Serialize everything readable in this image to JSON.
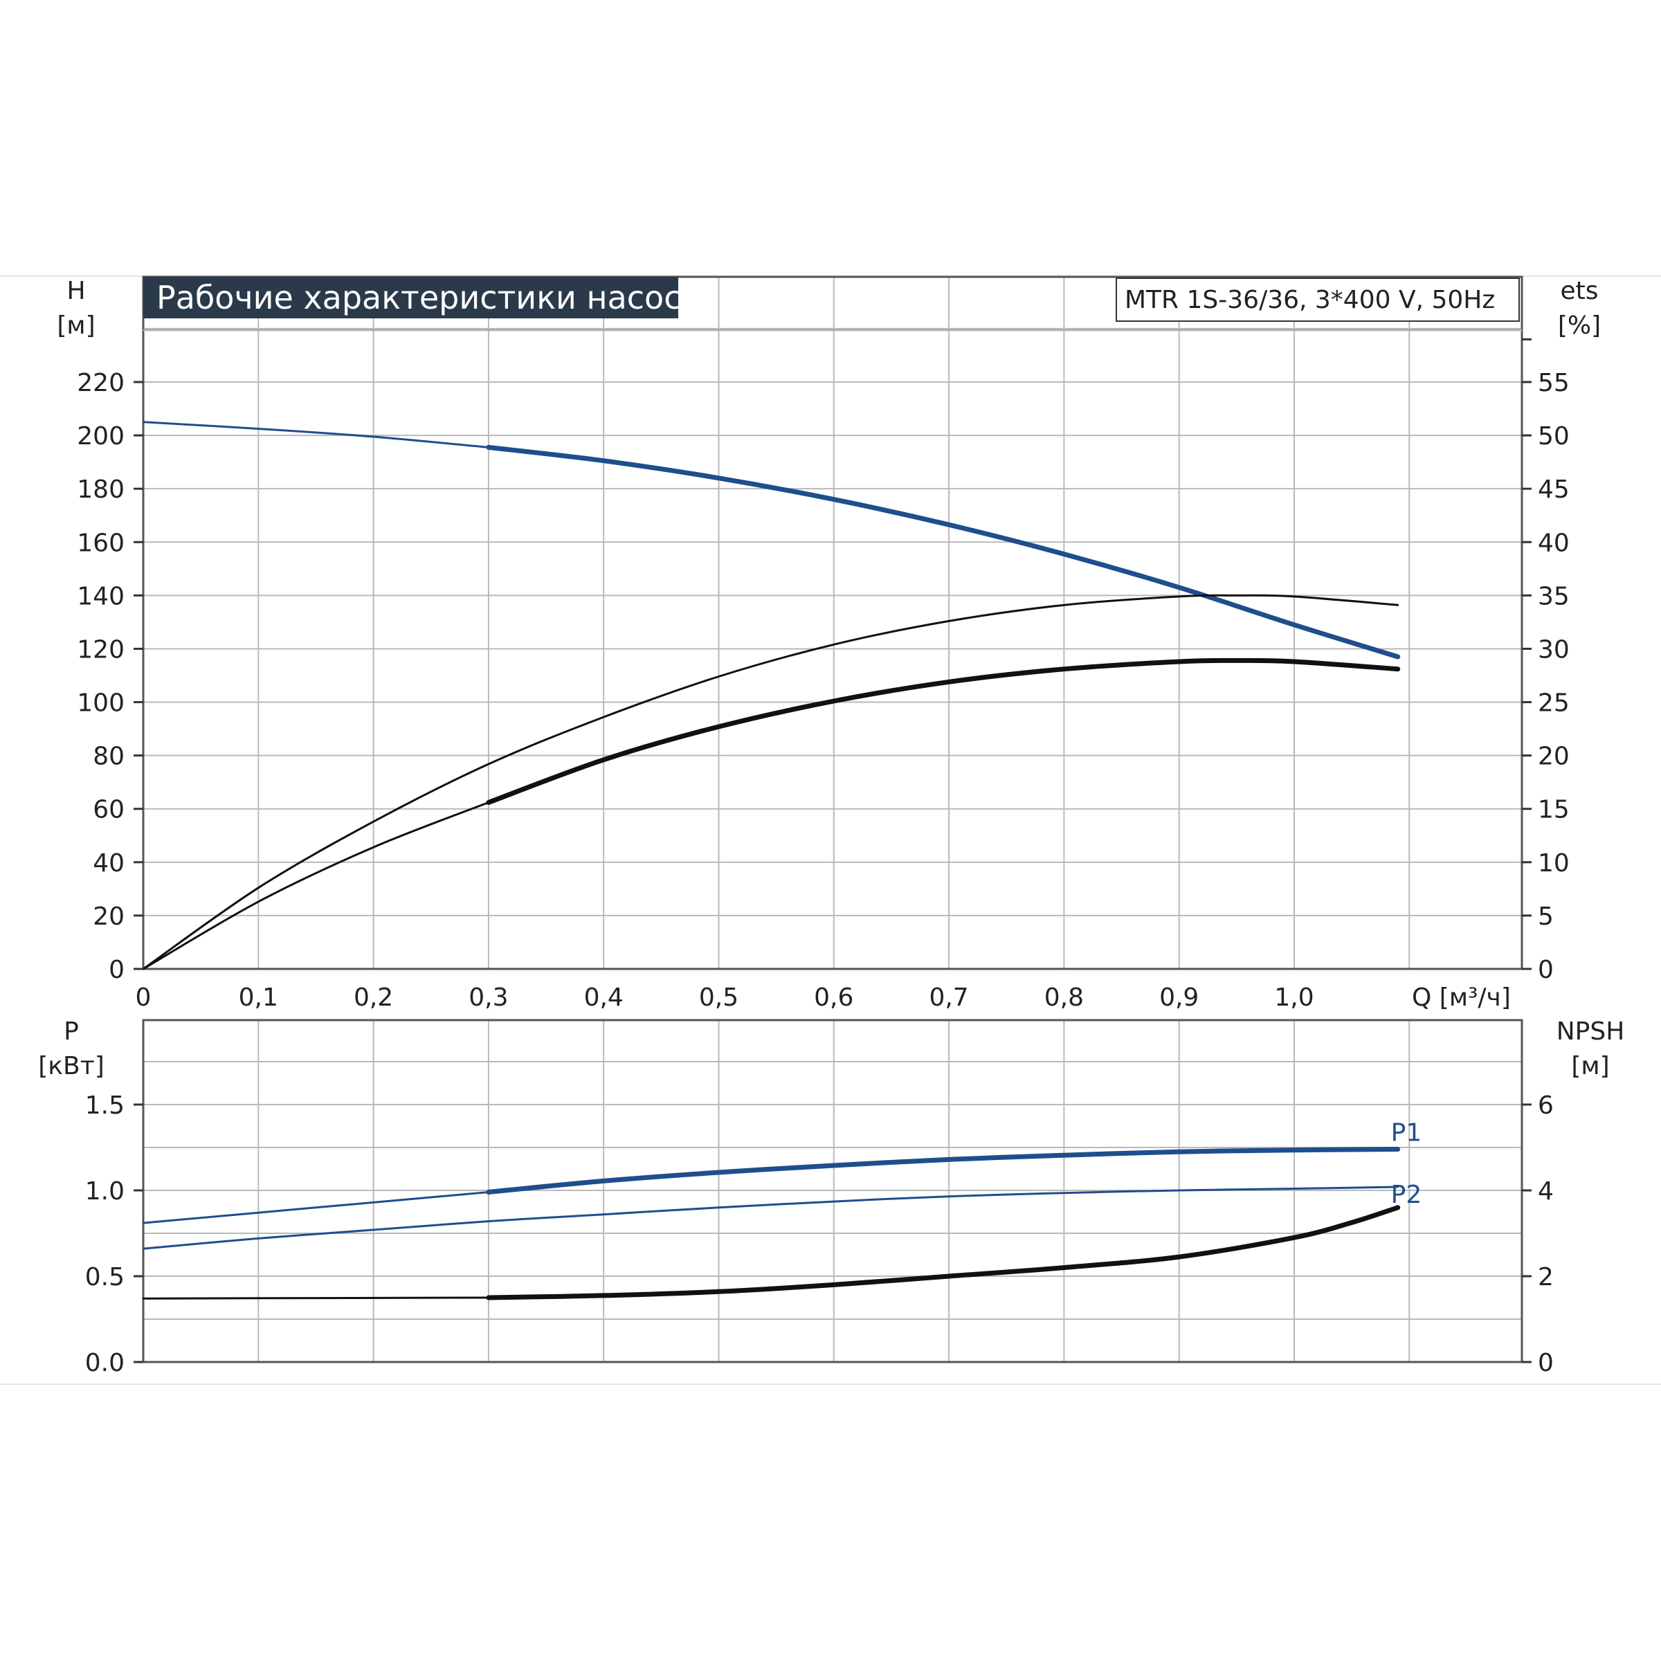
{
  "title": "Рабочие характеристики насоса",
  "model": "MTR 1S-36/36, 3*400 V, 50Hz",
  "colors": {
    "blue": "#1f4e8c",
    "black": "#111111",
    "grid": "#b9b9b9",
    "title_bg": "#2b3a4a",
    "gray_line": "#b0b0b0"
  },
  "chart_data": [
    {
      "type": "line",
      "panel": "head-efficiency",
      "xlabel": "Q [м³/ч]",
      "x_ticks": [
        "0",
        "0,1",
        "0,2",
        "0,3",
        "0,4",
        "0,5",
        "0,6",
        "0,7",
        "0,8",
        "0,9",
        "1,0"
      ],
      "xlim": [
        0,
        1.2
      ],
      "y_left": {
        "label_top": "H",
        "label_unit": "[м]",
        "ticks": [
          "0",
          "20",
          "40",
          "60",
          "80",
          "100",
          "120",
          "140",
          "160",
          "180",
          "200",
          "220"
        ],
        "lim": [
          0,
          240
        ]
      },
      "y_right": {
        "label_top": "ets",
        "label_unit": "[%]",
        "ticks": [
          "0",
          "5",
          "10",
          "15",
          "20",
          "25",
          "30",
          "35",
          "40",
          "45",
          "50",
          "55"
        ],
        "lim": [
          0,
          60
        ]
      },
      "grid": true,
      "series": [
        {
          "axis": "left",
          "color": "#1f4e8c",
          "style": "thin",
          "x": [
            0,
            0.1,
            0.2,
            0.3
          ],
          "y": [
            205,
            202.5,
            199.5,
            195.5
          ]
        },
        {
          "axis": "left",
          "color": "#1f4e8c",
          "style": "thick",
          "x": [
            0.3,
            0.4,
            0.5,
            0.6,
            0.7,
            0.8,
            0.9,
            1.0,
            1.09
          ],
          "y": [
            195.5,
            190.5,
            184,
            176,
            166.5,
            155.5,
            143,
            129,
            117
          ]
        },
        {
          "axis": "right",
          "color": "#111111",
          "style": "thin",
          "x": [
            0,
            0.1,
            0.2,
            0.3,
            0.4,
            0.5,
            0.6,
            0.7,
            0.8,
            0.9,
            0.95,
            1.0,
            1.09
          ],
          "y": [
            0,
            7.6,
            13.8,
            19.2,
            23.6,
            27.4,
            30.4,
            32.6,
            34.1,
            34.9,
            35,
            34.9,
            34.1
          ]
        },
        {
          "axis": "right",
          "color": "#111111",
          "style": "thin",
          "x": [
            0,
            0.1,
            0.2,
            0.3
          ],
          "y": [
            0,
            6.3,
            11.4,
            15.6
          ]
        },
        {
          "axis": "right",
          "color": "#111111",
          "style": "thick",
          "x": [
            0.3,
            0.4,
            0.5,
            0.6,
            0.7,
            0.8,
            0.9,
            0.95,
            1.0,
            1.09
          ],
          "y": [
            15.6,
            19.6,
            22.7,
            25.1,
            26.9,
            28.1,
            28.8,
            28.9,
            28.8,
            28.1
          ]
        }
      ]
    },
    {
      "type": "line",
      "panel": "power-npsh",
      "xlim": [
        0,
        1.2
      ],
      "y_left": {
        "label_top": "P",
        "label_unit": "[кВт]",
        "ticks": [
          "0.0",
          "0.5",
          "1.0",
          "1.5"
        ],
        "lim": [
          0,
          2.0
        ]
      },
      "y_right": {
        "label_top": "NPSH",
        "label_unit": "[м]",
        "ticks": [
          "0",
          "2",
          "4",
          "6"
        ],
        "lim": [
          0,
          8
        ]
      },
      "grid": true,
      "series": [
        {
          "name": "P1",
          "axis": "left",
          "color": "#1f4e8c",
          "style": "thin",
          "x": [
            0,
            0.1,
            0.2,
            0.3
          ],
          "y": [
            0.81,
            0.87,
            0.93,
            0.99
          ]
        },
        {
          "name": "P1",
          "axis": "left",
          "color": "#1f4e8c",
          "style": "thick",
          "x": [
            0.3,
            0.4,
            0.5,
            0.6,
            0.7,
            0.8,
            0.9,
            1.0,
            1.09
          ],
          "y": [
            0.99,
            1.055,
            1.105,
            1.145,
            1.18,
            1.205,
            1.225,
            1.235,
            1.24
          ]
        },
        {
          "name": "P2",
          "axis": "left",
          "color": "#1f4e8c",
          "style": "thin",
          "x": [
            0,
            0.1,
            0.2,
            0.3,
            0.4,
            0.5,
            0.6,
            0.7,
            0.8,
            0.9,
            1.0,
            1.09
          ],
          "y": [
            0.66,
            0.72,
            0.77,
            0.82,
            0.86,
            0.9,
            0.935,
            0.965,
            0.985,
            1.0,
            1.01,
            1.02
          ]
        },
        {
          "axis": "right",
          "color": "#111111",
          "style": "thin",
          "x": [
            0,
            0.3
          ],
          "y": [
            1.48,
            1.5
          ]
        },
        {
          "axis": "right",
          "color": "#111111",
          "style": "thick",
          "x": [
            0.3,
            0.4,
            0.5,
            0.6,
            0.7,
            0.8,
            0.9,
            1.0,
            1.05,
            1.09
          ],
          "y": [
            1.5,
            1.55,
            1.64,
            1.8,
            2.0,
            2.2,
            2.45,
            2.9,
            3.25,
            3.6
          ]
        }
      ],
      "labels": [
        {
          "text": "P1",
          "x": 1.09,
          "y": 1.24
        },
        {
          "text": "P2",
          "x": 1.09,
          "y": 0.88
        }
      ]
    }
  ]
}
